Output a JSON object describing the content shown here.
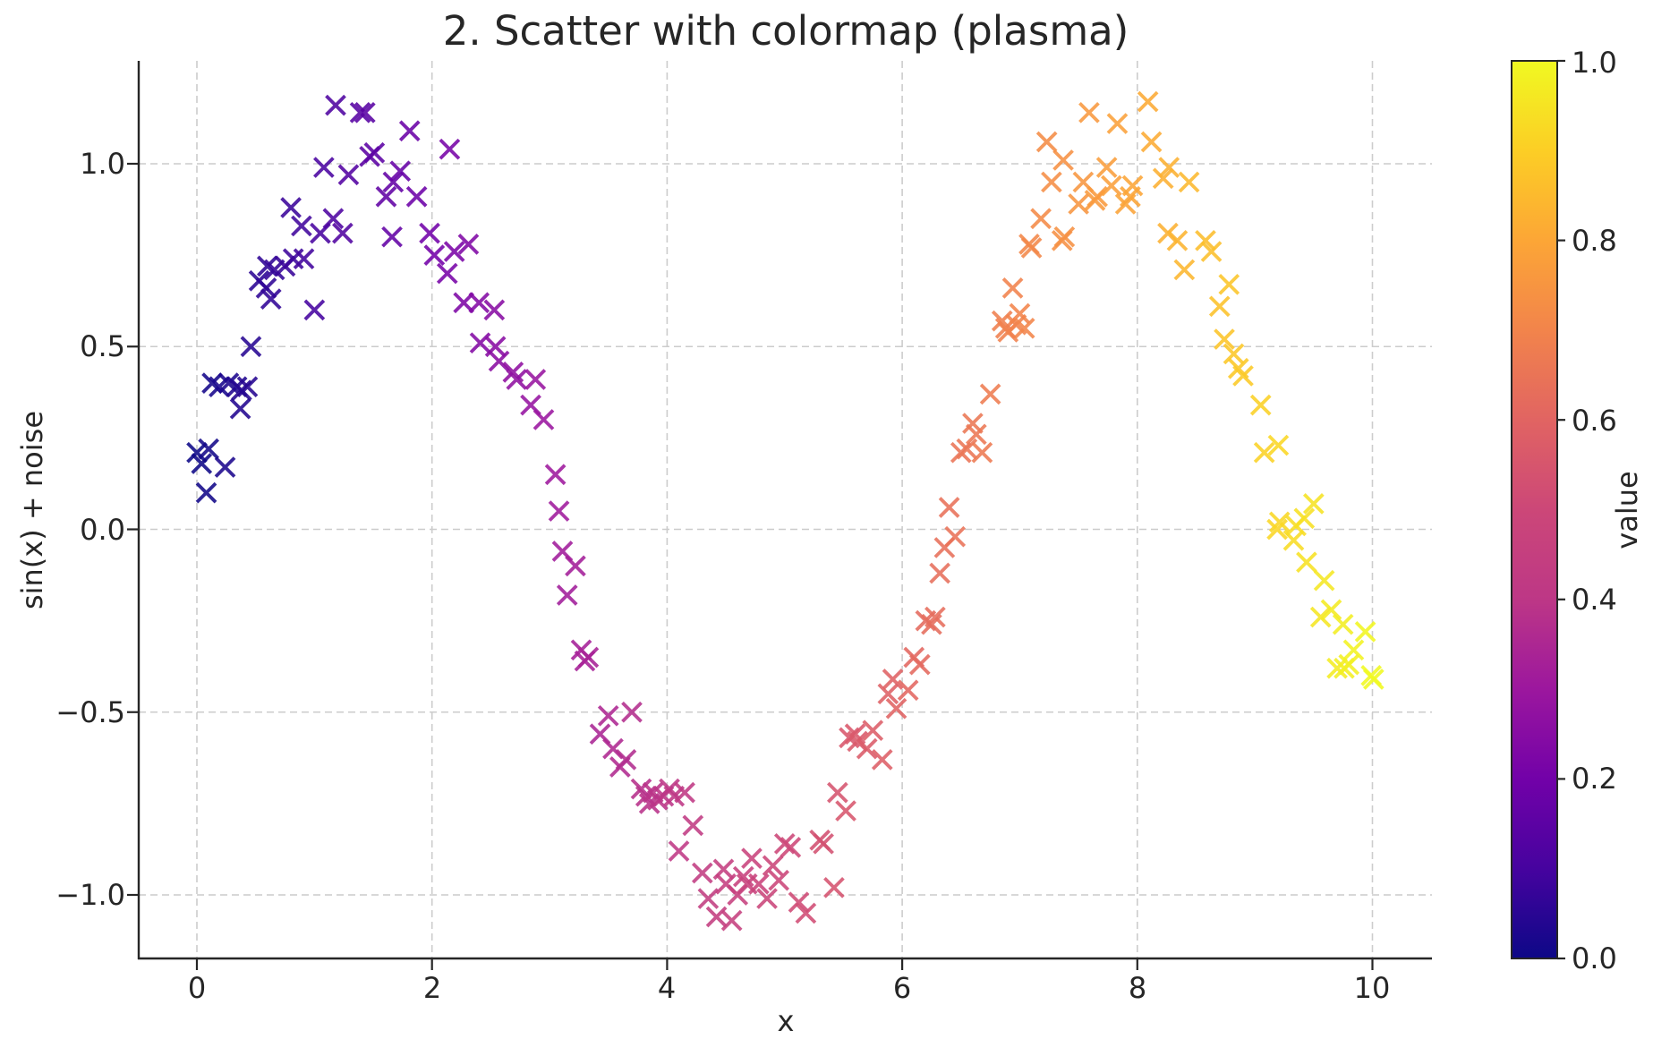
{
  "figure": {
    "background": "#ffffff",
    "text_color": "#262626",
    "grid_color": "#cccccc",
    "spine_color": "#262626"
  },
  "chart_data": {
    "type": "scatter",
    "title": "2. Scatter with colormap (plasma)",
    "xlabel": "x",
    "ylabel": "sin(x) + noise",
    "xlim": [
      -0.5,
      10.5
    ],
    "ylim": [
      -1.17,
      1.28
    ],
    "grid": true,
    "grid_style": "dashed",
    "legend": "none",
    "marker": "x",
    "colormap": "plasma",
    "color_value": "x/10",
    "x_tick_values": [
      0,
      2,
      4,
      6,
      8,
      10
    ],
    "x_tick_labels": [
      "0",
      "2",
      "4",
      "6",
      "8",
      "10"
    ],
    "y_tick_values": [
      1.0,
      0.5,
      0.0,
      -0.5,
      -1.0
    ],
    "y_tick_labels": [
      "1.0",
      "0.5",
      "0.0",
      "−0.5",
      "−1.0"
    ],
    "colorbar": {
      "label": "value",
      "tick_values": [
        1.0,
        0.8,
        0.6,
        0.4,
        0.2,
        0.0
      ],
      "tick_labels": [
        "1.0",
        "0.8",
        "0.6",
        "0.4",
        "0.2",
        "0.0"
      ],
      "stops": [
        {
          "t": 0.0,
          "color": "#0d0887"
        },
        {
          "t": 0.1,
          "color": "#46039f"
        },
        {
          "t": 0.2,
          "color": "#7201a8"
        },
        {
          "t": 0.3,
          "color": "#9c179e"
        },
        {
          "t": 0.4,
          "color": "#bd3786"
        },
        {
          "t": 0.5,
          "color": "#cc4778"
        },
        {
          "t": 0.6,
          "color": "#e16462"
        },
        {
          "t": 0.7,
          "color": "#f2844b"
        },
        {
          "t": 0.8,
          "color": "#fca636"
        },
        {
          "t": 0.9,
          "color": "#fcce25"
        },
        {
          "t": 1.0,
          "color": "#f0f921"
        }
      ]
    },
    "points": {
      "x": [
        0.0,
        0.04,
        0.08,
        0.1,
        0.13,
        0.19,
        0.24,
        0.27,
        0.34,
        0.37,
        0.38,
        0.43,
        0.46,
        0.53,
        0.59,
        0.6,
        0.63,
        0.66,
        0.75,
        0.8,
        0.82,
        0.89,
        0.91,
        1.0,
        1.05,
        1.08,
        1.16,
        1.18,
        1.24,
        1.29,
        1.39,
        1.43,
        1.47,
        1.51,
        1.61,
        1.66,
        1.67,
        1.73,
        1.81,
        1.87,
        1.98,
        2.02,
        2.13,
        2.15,
        2.19,
        2.27,
        2.31,
        2.4,
        2.41,
        2.53,
        2.54,
        2.57,
        2.69,
        2.72,
        2.84,
        2.88,
        2.95,
        3.05,
        3.08,
        3.11,
        3.15,
        3.22,
        3.27,
        3.3,
        3.33,
        3.43,
        3.5,
        3.54,
        3.6,
        3.65,
        3.7,
        3.78,
        3.82,
        3.85,
        3.88,
        3.92,
        3.97,
        4.02,
        4.06,
        4.1,
        4.15,
        4.22,
        4.3,
        4.35,
        4.42,
        4.48,
        4.5,
        4.55,
        4.6,
        4.65,
        4.68,
        4.72,
        4.78,
        4.85,
        4.9,
        4.95,
        5.0,
        5.05,
        5.12,
        5.18,
        5.3,
        5.33,
        5.42,
        5.45,
        5.52,
        5.55,
        5.6,
        5.62,
        5.7,
        5.75,
        5.83,
        5.88,
        5.92,
        5.95,
        6.05,
        6.1,
        6.15,
        6.2,
        6.25,
        6.28,
        6.32,
        6.36,
        6.4,
        6.45,
        6.5,
        6.55,
        6.6,
        6.63,
        6.68,
        6.75,
        6.85,
        6.88,
        6.9,
        6.94,
        6.97,
        7.0,
        7.04,
        7.08,
        7.1,
        7.18,
        7.23,
        7.27,
        7.36,
        7.37,
        7.38,
        7.5,
        7.54,
        7.59,
        7.64,
        7.66,
        7.74,
        7.78,
        7.83,
        7.9,
        7.94,
        7.96,
        8.09,
        8.12,
        8.22,
        8.26,
        8.27,
        8.34,
        8.4,
        8.44,
        8.58,
        8.63,
        8.7,
        8.74,
        8.78,
        8.82,
        8.86,
        8.9,
        9.05,
        9.08,
        9.19,
        9.2,
        9.21,
        9.33,
        9.35,
        9.42,
        9.44,
        9.5,
        9.56,
        9.59,
        9.65,
        9.7,
        9.75,
        9.76,
        9.8,
        9.84,
        9.94,
        9.99,
        10.01
      ],
      "y": [
        0.21,
        0.18,
        0.1,
        0.22,
        0.4,
        0.39,
        0.17,
        0.4,
        0.39,
        0.33,
        0.38,
        0.39,
        0.5,
        0.68,
        0.66,
        0.72,
        0.63,
        0.71,
        0.72,
        0.88,
        0.74,
        0.83,
        0.74,
        0.6,
        0.81,
        0.99,
        0.85,
        1.16,
        0.81,
        0.97,
        1.14,
        1.14,
        1.02,
        1.03,
        0.91,
        0.8,
        0.95,
        0.98,
        1.09,
        0.91,
        0.81,
        0.75,
        0.7,
        1.04,
        0.76,
        0.62,
        0.78,
        0.62,
        0.51,
        0.6,
        0.5,
        0.46,
        0.43,
        0.41,
        0.34,
        0.41,
        0.3,
        0.15,
        0.05,
        -0.06,
        -0.18,
        -0.1,
        -0.33,
        -0.36,
        -0.35,
        -0.56,
        -0.51,
        -0.6,
        -0.65,
        -0.63,
        -0.5,
        -0.71,
        -0.73,
        -0.75,
        -0.72,
        -0.74,
        -0.73,
        -0.71,
        -0.73,
        -0.88,
        -0.72,
        -0.81,
        -0.94,
        -1.01,
        -1.06,
        -0.93,
        -0.97,
        -1.07,
        -1.0,
        -0.95,
        -0.97,
        -0.9,
        -0.97,
        -1.01,
        -0.92,
        -0.96,
        -0.86,
        -0.87,
        -1.02,
        -1.05,
        -0.85,
        -0.86,
        -0.98,
        -0.72,
        -0.77,
        -0.57,
        -0.56,
        -0.58,
        -0.6,
        -0.55,
        -0.63,
        -0.45,
        -0.41,
        -0.49,
        -0.44,
        -0.35,
        -0.37,
        -0.25,
        -0.26,
        -0.24,
        -0.12,
        -0.05,
        0.06,
        -0.02,
        0.21,
        0.22,
        0.29,
        0.26,
        0.21,
        0.37,
        0.57,
        0.55,
        0.54,
        0.66,
        0.56,
        0.59,
        0.55,
        0.78,
        0.77,
        0.85,
        1.06,
        0.95,
        0.79,
        1.01,
        0.8,
        0.89,
        0.95,
        1.14,
        0.9,
        0.91,
        0.99,
        0.94,
        1.11,
        0.89,
        0.91,
        0.94,
        1.17,
        1.06,
        0.96,
        0.81,
        0.99,
        0.79,
        0.71,
        0.95,
        0.79,
        0.76,
        0.61,
        0.52,
        0.67,
        0.48,
        0.44,
        0.42,
        0.34,
        0.21,
        0.0,
        0.23,
        0.02,
        -0.03,
        0.01,
        0.03,
        -0.09,
        0.07,
        -0.24,
        -0.14,
        -0.22,
        -0.38,
        -0.26,
        -0.38,
        -0.37,
        -0.33,
        -0.28,
        -0.4,
        -0.41
      ]
    }
  }
}
